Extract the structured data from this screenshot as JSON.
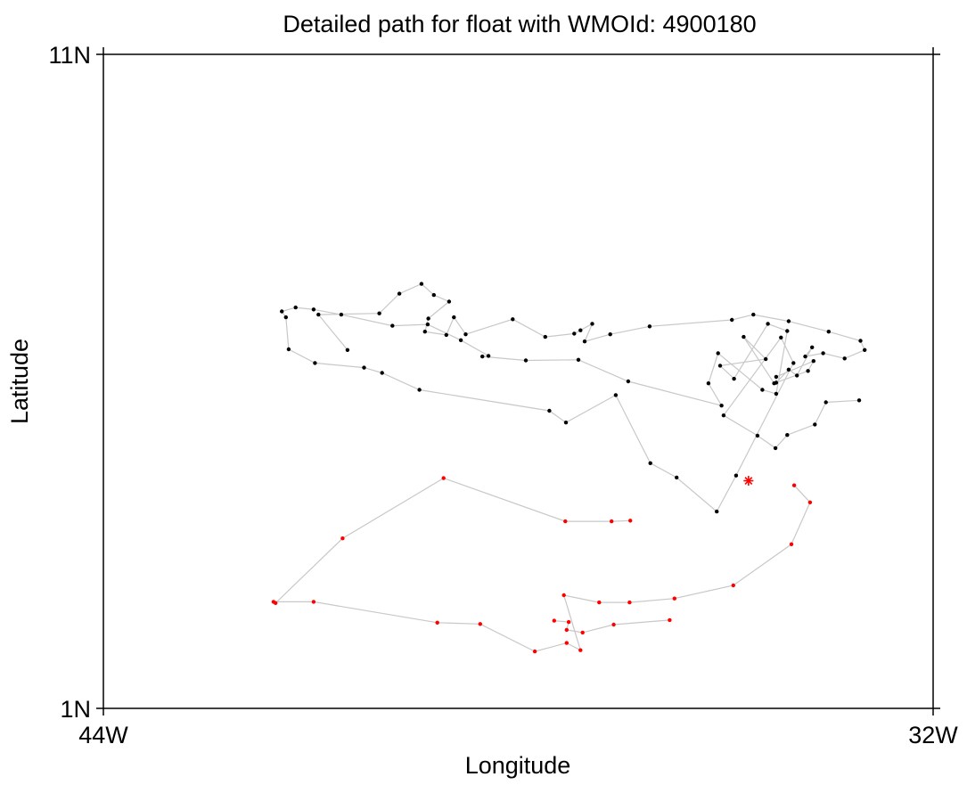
{
  "chart_data": {
    "type": "scatter",
    "title": "Detailed path for float with WMOId: 4900180",
    "xlabel": "Longitude",
    "ylabel": "Latitude",
    "xlim": [
      -44,
      -32
    ],
    "ylim": [
      1,
      11
    ],
    "x_ticks": [
      {
        "value": -44,
        "label": "44W"
      },
      {
        "value": -32,
        "label": "32W"
      }
    ],
    "y_ticks": [
      {
        "value": 1,
        "label": "1N"
      },
      {
        "value": 11,
        "label": "11N"
      }
    ],
    "grid": false,
    "colors": {
      "path_line": "#c8c8c8",
      "older_points": "#000000",
      "recent_points": "#ff0000",
      "last_position": "#ff0000",
      "frame": "#000000"
    },
    "series": [
      {
        "color": "#000000",
        "points": [
          [
            -40.47,
            6.48
          ],
          [
            -40.89,
            7.02
          ],
          [
            -40.01,
            7.04
          ],
          [
            -39.72,
            7.34
          ],
          [
            -39.4,
            7.49
          ],
          [
            -39.22,
            7.32
          ],
          [
            -39.0,
            7.22
          ],
          [
            -39.3,
            6.96
          ],
          [
            -39.35,
            6.76
          ],
          [
            -39.04,
            6.71
          ],
          [
            -38.93,
            6.98
          ],
          [
            -38.76,
            6.72
          ],
          [
            -38.08,
            6.95
          ],
          [
            -37.61,
            6.68
          ],
          [
            -37.19,
            6.73
          ],
          [
            -37.1,
            6.78
          ],
          [
            -36.93,
            6.88
          ],
          [
            -37.04,
            6.61
          ],
          [
            -36.67,
            6.72
          ],
          [
            -36.1,
            6.84
          ],
          [
            -34.91,
            6.94
          ],
          [
            -34.6,
            7.02
          ],
          [
            -34.09,
            6.92
          ],
          [
            -33.51,
            6.76
          ],
          [
            -33.05,
            6.62
          ],
          [
            -32.99,
            6.48
          ],
          [
            -33.28,
            6.35
          ],
          [
            -33.59,
            6.43
          ],
          [
            -33.85,
            6.38
          ],
          [
            -33.75,
            6.52
          ],
          [
            -33.97,
            6.09
          ],
          [
            -34.09,
            6.18
          ],
          [
            -34.27,
            5.98
          ],
          [
            -34.27,
            6.07
          ],
          [
            -33.73,
            6.31
          ],
          [
            -33.81,
            6.16
          ],
          [
            -34.3,
            5.97
          ],
          [
            -34.74,
            6.68
          ],
          [
            -34.42,
            6.34
          ],
          [
            -35.08,
            6.24
          ],
          [
            -34.88,
            6.04
          ],
          [
            -34.39,
            6.88
          ],
          [
            -34.11,
            6.77
          ],
          [
            -34.27,
            5.81
          ],
          [
            -34.47,
            5.87
          ],
          [
            -35.11,
            6.43
          ],
          [
            -35.25,
            5.97
          ],
          [
            -35.06,
            5.63
          ],
          [
            -36.41,
            6.0
          ],
          [
            -37.13,
            6.33
          ],
          [
            -37.89,
            6.32
          ],
          [
            -38.52,
            6.38
          ],
          [
            -38.43,
            6.39
          ],
          [
            -38.83,
            6.63
          ],
          [
            -39.31,
            6.87
          ],
          [
            -39.82,
            6.85
          ],
          [
            -40.56,
            7.02
          ],
          [
            -40.96,
            7.1
          ],
          [
            -41.22,
            7.13
          ],
          [
            -41.42,
            7.07
          ],
          [
            -41.36,
            6.98
          ],
          [
            -41.32,
            6.49
          ],
          [
            -40.94,
            6.28
          ],
          [
            -40.23,
            6.21
          ],
          [
            -39.97,
            6.13
          ],
          [
            -39.43,
            5.87
          ],
          [
            -37.55,
            5.55
          ],
          [
            -37.31,
            5.37
          ],
          [
            -36.59,
            5.79
          ],
          [
            -36.09,
            4.75
          ],
          [
            -35.71,
            4.53
          ],
          [
            -35.13,
            4.01
          ],
          [
            -34.85,
            4.56
          ],
          [
            -34.02,
            6.28
          ],
          [
            -34.2,
            6.67
          ],
          [
            -35.03,
            5.48
          ],
          [
            -34.54,
            5.17
          ],
          [
            -34.28,
            4.98
          ],
          [
            -34.11,
            5.18
          ],
          [
            -33.71,
            5.34
          ],
          [
            -33.55,
            5.68
          ],
          [
            -33.07,
            5.71
          ]
        ]
      },
      {
        "color": "#ff0000",
        "points": [
          [
            -36.38,
            3.87
          ],
          [
            -36.65,
            3.86
          ],
          [
            -37.32,
            3.86
          ],
          [
            -39.08,
            4.52
          ],
          [
            -40.54,
            3.6
          ],
          [
            -41.51,
            2.61
          ],
          [
            -41.54,
            2.63
          ],
          [
            -40.96,
            2.63
          ],
          [
            -39.17,
            2.31
          ],
          [
            -38.55,
            2.29
          ],
          [
            -37.76,
            1.87
          ],
          [
            -37.3,
            2.0
          ],
          [
            -37.1,
            1.89
          ],
          [
            -37.34,
            2.73
          ],
          [
            -36.83,
            2.62
          ],
          [
            -36.39,
            2.62
          ],
          [
            -35.74,
            2.68
          ],
          [
            -34.89,
            2.88
          ],
          [
            -34.05,
            3.51
          ],
          [
            -33.78,
            4.15
          ],
          [
            -34.01,
            4.41
          ]
        ]
      },
      {
        "color": "#ff0000",
        "points": [
          [
            -37.48,
            2.34
          ],
          [
            -37.27,
            2.32
          ],
          [
            -37.3,
            2.2
          ],
          [
            -37.07,
            2.16
          ],
          [
            -36.62,
            2.28
          ],
          [
            -35.81,
            2.35
          ]
        ]
      }
    ],
    "last_position": [
      -34.67,
      4.48
    ]
  }
}
